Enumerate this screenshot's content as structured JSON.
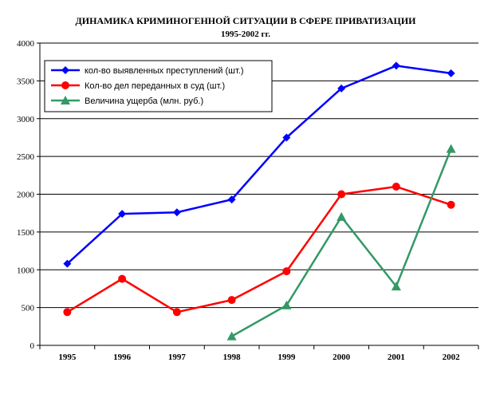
{
  "chart_data": {
    "type": "line",
    "title": "ДИНАМИКА КРИМИНОГЕННОЙ СИТУАЦИИ В СФЕРЕ ПРИВАТИЗАЦИИ",
    "subtitle": "1995-2002 гг.",
    "categories": [
      "1995",
      "1996",
      "1997",
      "1998",
      "1999",
      "2000",
      "2001",
      "2002"
    ],
    "ylim": [
      0,
      4000
    ],
    "yticks": [
      0,
      500,
      1000,
      1500,
      2000,
      2500,
      3000,
      3500,
      4000
    ],
    "grid": true,
    "legend_position": "top-left",
    "series": [
      {
        "name": "кол-во выявленных преступлений (шт.)",
        "color": "#0000ff",
        "marker": "diamond",
        "values": [
          1080,
          1740,
          1760,
          1930,
          2750,
          3400,
          3700,
          3600
        ]
      },
      {
        "name": "Кол-во дел переданных в суд (шт.)",
        "color": "#ff0000",
        "marker": "circle",
        "values": [
          440,
          880,
          440,
          600,
          980,
          2000,
          2100,
          1860
        ]
      },
      {
        "name": "Величина ущерба (млн. руб.)",
        "color": "#339966",
        "marker": "triangle",
        "values": [
          null,
          null,
          null,
          120,
          530,
          1700,
          780,
          2600
        ]
      }
    ]
  }
}
